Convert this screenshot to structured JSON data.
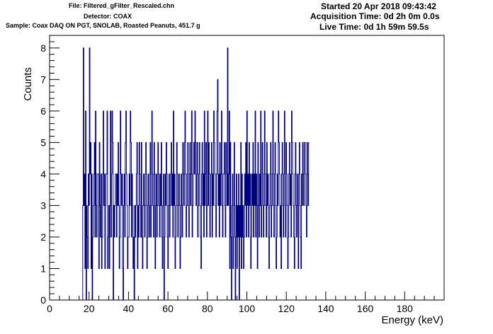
{
  "header": {
    "file": "File: Filtered_gFilter_Rescaled.chn",
    "detector": "Detector: COAX",
    "sample": "Sample: Coax DAQ ON PGT, SNOLAB, Roasted Peanuts, 451.7 g",
    "started": "Started 20 Apr 2018 09:43:42",
    "acquisition_time": "Acquisition Time: 0d 2h 0m 0.0s",
    "live_time": "Live Time: 0d 1h 59m 59.5s"
  },
  "colors": {
    "line": "#00007f",
    "frame": "#000000"
  },
  "chart_data": {
    "type": "line",
    "style": "step-histogram",
    "xlabel": "Energy (keV)",
    "ylabel": "Counts",
    "xlim": [
      0,
      200
    ],
    "ylim": [
      0,
      8.4
    ],
    "x_ticks": [
      0,
      20,
      40,
      60,
      80,
      100,
      120,
      140,
      160,
      180
    ],
    "y_ticks": [
      0,
      1,
      2,
      3,
      4,
      5,
      6,
      7,
      8
    ],
    "grid": false,
    "legend": "none",
    "bin_width_keV": 0.28,
    "series": [
      {
        "values": [
          0,
          0,
          0,
          0,
          0,
          0,
          0,
          0,
          0,
          0,
          0,
          0,
          0,
          0,
          0,
          0,
          0,
          0,
          0,
          0,
          0,
          0,
          0,
          0,
          0,
          0,
          0,
          0,
          0,
          0,
          0,
          0,
          0,
          0,
          0,
          0,
          0,
          0,
          0,
          0,
          0,
          0,
          0,
          0,
          0,
          0,
          0,
          0,
          0,
          0,
          0,
          0,
          0,
          0,
          0,
          0,
          0,
          0,
          0,
          0,
          3,
          8,
          3,
          4,
          1,
          6,
          0,
          3,
          2,
          1,
          4,
          3,
          8,
          4,
          5,
          1,
          4,
          0,
          2,
          3,
          4,
          5,
          2,
          6,
          3,
          2,
          4,
          4,
          4,
          1,
          5,
          3,
          2,
          4,
          1,
          2,
          4,
          6,
          3,
          4,
          1,
          3,
          4,
          4,
          6,
          1,
          2,
          3,
          1,
          3,
          6,
          2,
          4,
          6,
          5,
          0,
          3,
          2,
          3,
          4,
          4,
          2,
          4,
          3,
          5,
          3,
          1,
          2,
          6,
          4,
          3,
          4,
          1,
          0,
          3,
          4,
          2,
          5,
          6,
          4,
          3,
          1,
          2,
          2,
          4,
          3,
          6,
          5,
          2,
          4,
          3,
          1,
          2,
          0,
          3,
          2,
          3,
          4,
          5,
          1,
          3,
          2,
          5,
          4,
          3,
          2,
          5,
          2,
          1,
          3,
          4,
          3,
          2,
          4,
          5,
          3,
          1,
          2,
          4,
          3,
          2,
          4,
          5,
          2,
          3,
          6,
          4,
          3,
          2,
          5,
          4,
          1,
          3,
          4,
          2,
          3,
          5,
          4,
          3,
          2,
          4,
          3,
          5,
          2,
          1,
          3,
          4,
          0,
          2,
          4,
          3,
          5,
          4,
          2,
          1,
          3,
          4,
          2,
          3,
          4,
          5,
          3,
          4,
          2,
          6,
          3,
          4,
          1,
          2,
          3,
          5,
          4,
          2,
          3,
          4,
          3,
          1,
          2,
          4,
          3,
          2,
          5,
          4,
          3,
          5,
          6,
          4,
          2,
          3,
          4,
          5,
          3,
          2,
          4,
          5,
          3,
          4,
          6,
          2,
          3,
          4,
          5,
          4,
          6,
          5,
          3,
          4,
          5,
          2,
          3,
          4,
          5,
          3,
          2,
          1,
          4,
          5,
          3,
          4,
          2,
          6,
          3,
          4,
          5,
          2,
          3,
          6,
          3,
          5,
          4,
          2,
          3,
          4,
          5,
          2,
          4,
          3,
          6,
          5,
          4,
          3,
          2,
          4,
          6,
          7,
          3,
          4,
          2,
          5,
          3,
          4,
          6,
          3,
          2,
          4,
          4,
          5,
          3,
          2,
          5,
          4,
          3,
          8,
          3,
          4,
          6,
          1,
          5,
          2,
          0,
          3,
          4,
          1,
          2,
          5,
          3,
          0,
          2,
          4,
          1,
          3,
          2,
          4,
          0,
          3,
          2,
          5,
          1,
          4,
          2,
          3,
          1,
          2,
          4,
          3,
          5,
          2,
          6,
          3,
          4,
          2,
          5,
          3,
          4,
          1,
          2,
          4,
          3,
          5,
          2,
          4,
          3,
          6,
          2,
          4,
          3,
          1,
          5,
          3,
          2,
          4,
          3,
          6,
          2,
          3,
          5,
          4,
          2,
          3,
          6,
          4,
          3,
          2,
          5,
          3,
          4,
          2,
          1,
          3,
          4,
          5,
          2,
          3,
          4,
          6,
          3,
          2,
          4,
          5,
          3,
          1,
          2,
          4,
          3,
          6,
          5,
          4,
          2,
          3,
          1,
          4,
          5,
          3,
          2,
          4,
          6,
          3,
          2,
          5,
          4,
          3,
          1,
          2,
          4,
          5,
          3,
          4,
          2,
          6,
          5,
          4,
          3,
          2,
          1,
          4,
          5,
          3,
          2,
          4,
          3,
          1,
          4,
          5,
          3,
          2,
          1,
          4,
          3,
          5,
          4,
          3,
          5,
          5,
          4,
          3,
          2,
          5,
          4,
          3,
          5
        ]
      }
    ]
  }
}
